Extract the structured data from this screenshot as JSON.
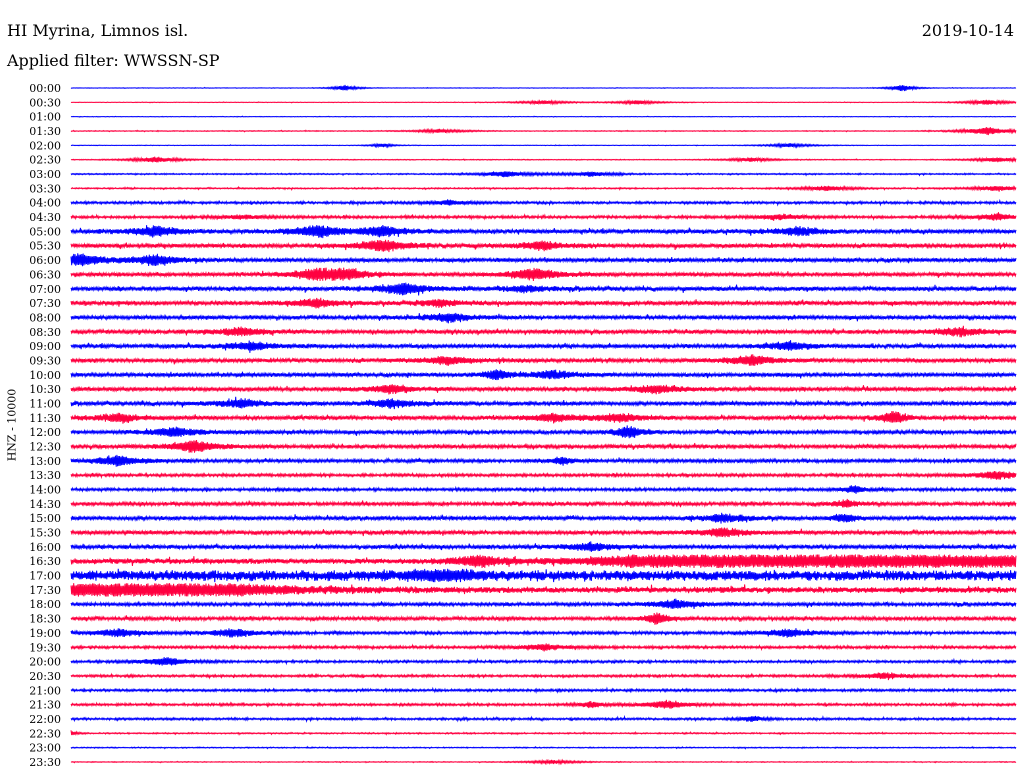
{
  "header": {
    "station": "HI Myrina, Limnos isl.",
    "date": "2019-10-14",
    "filter": "Applied filter: WWSSN-SP"
  },
  "chart_data": {
    "type": "line",
    "ylabel": "HNZ - 10000",
    "rows": [
      "00:00",
      "00:30",
      "01:00",
      "01:30",
      "02:00",
      "02:30",
      "03:00",
      "03:30",
      "04:00",
      "04:30",
      "05:00",
      "05:30",
      "06:00",
      "06:30",
      "07:00",
      "07:30",
      "08:00",
      "08:30",
      "09:00",
      "09:30",
      "10:00",
      "10:30",
      "11:00",
      "11:30",
      "12:00",
      "12:30",
      "13:00",
      "13:30",
      "14:00",
      "14:30",
      "15:00",
      "15:30",
      "16:00",
      "16:30",
      "17:00",
      "17:30",
      "18:00",
      "18:30",
      "19:00",
      "19:30",
      "20:00",
      "20:30",
      "21:00",
      "21:30",
      "22:00",
      "22:30",
      "23:00",
      "23:30"
    ],
    "colors": [
      "#0000ff",
      "#ff0040"
    ],
    "noise_level": [
      0.2,
      0.2,
      0.2,
      0.3,
      0.2,
      0.3,
      0.5,
      0.5,
      0.9,
      1.0,
      1.6,
      1.6,
      1.5,
      1.5,
      1.6,
      1.6,
      1.5,
      1.5,
      1.5,
      1.5,
      1.5,
      1.5,
      1.5,
      1.5,
      1.4,
      1.4,
      1.3,
      1.1,
      1.1,
      1.3,
      1.5,
      1.5,
      1.5,
      2.0,
      4.0,
      2.3,
      1.3,
      1.3,
      1.1,
      1.0,
      0.9,
      0.9,
      0.9,
      0.9,
      0.8,
      0.5,
      0.4,
      0.3
    ],
    "events": [
      [
        [
          0.29,
          3,
          0.01
        ],
        [
          0.88,
          3.5,
          0.01
        ]
      ],
      [
        [
          0.5,
          2,
          0.02
        ],
        [
          0.6,
          2,
          0.02
        ],
        [
          0.97,
          2.5,
          0.02
        ]
      ],
      [],
      [
        [
          0.39,
          2,
          0.02
        ],
        [
          0.97,
          4,
          0.02
        ]
      ],
      [
        [
          0.33,
          2,
          0.01
        ],
        [
          0.76,
          2,
          0.02
        ]
      ],
      [
        [
          0.09,
          3,
          0.02
        ],
        [
          0.72,
          2,
          0.02
        ],
        [
          0.98,
          2.5,
          0.02
        ]
      ],
      [
        [
          0.46,
          3,
          0.02
        ],
        [
          0.55,
          2.5,
          0.02
        ]
      ],
      [
        [
          0.8,
          2.5,
          0.02
        ],
        [
          0.98,
          2.5,
          0.02
        ]
      ],
      [
        [
          0.4,
          2,
          0.02
        ]
      ],
      [
        [
          0.18,
          2,
          0.02
        ],
        [
          0.75,
          2.5,
          0.02
        ],
        [
          0.98,
          3,
          0.02
        ]
      ],
      [
        [
          0.09,
          5,
          0.02
        ],
        [
          0.26,
          6,
          0.02
        ],
        [
          0.33,
          5,
          0.02
        ],
        [
          0.77,
          4,
          0.02
        ]
      ],
      [
        [
          0.33,
          6,
          0.02
        ],
        [
          0.5,
          4,
          0.02
        ]
      ],
      [
        [
          0.01,
          6,
          0.02
        ],
        [
          0.09,
          5,
          0.02
        ]
      ],
      [
        [
          0.26,
          5,
          0.02
        ],
        [
          0.29,
          5,
          0.02
        ],
        [
          0.49,
          6,
          0.02
        ]
      ],
      [
        [
          0.35,
          6,
          0.02
        ],
        [
          0.48,
          3,
          0.02
        ]
      ],
      [
        [
          0.26,
          4,
          0.02
        ],
        [
          0.39,
          3,
          0.02
        ]
      ],
      [
        [
          0.4,
          4,
          0.02
        ]
      ],
      [
        [
          0.18,
          4,
          0.02
        ],
        [
          0.94,
          4,
          0.02
        ]
      ],
      [
        [
          0.19,
          4,
          0.02
        ],
        [
          0.76,
          4,
          0.02
        ]
      ],
      [
        [
          0.4,
          4,
          0.02
        ],
        [
          0.72,
          5,
          0.02
        ]
      ],
      [
        [
          0.45,
          5,
          0.01
        ],
        [
          0.51,
          4,
          0.02
        ]
      ],
      [
        [
          0.34,
          4,
          0.02
        ],
        [
          0.62,
          4,
          0.02
        ]
      ],
      [
        [
          0.18,
          4,
          0.02
        ],
        [
          0.34,
          4,
          0.02
        ]
      ],
      [
        [
          0.05,
          4,
          0.02
        ],
        [
          0.51,
          4,
          0.02
        ],
        [
          0.58,
          4,
          0.02
        ],
        [
          0.87,
          7,
          0.01
        ]
      ],
      [
        [
          0.11,
          5,
          0.02
        ],
        [
          0.59,
          8,
          0.01
        ]
      ],
      [
        [
          0.13,
          6,
          0.02
        ]
      ],
      [
        [
          0.05,
          5,
          0.02
        ],
        [
          0.52,
          4,
          0.01
        ]
      ],
      [
        [
          0.98,
          4,
          0.02
        ]
      ],
      [
        [
          0.83,
          4,
          0.01
        ]
      ],
      [
        [
          0.82,
          4,
          0.01
        ]
      ],
      [
        [
          0.82,
          4,
          0.01
        ],
        [
          0.69,
          4,
          0.02
        ]
      ],
      [
        [
          0.69,
          4,
          0.02
        ]
      ],
      [
        [
          0.55,
          4,
          0.02
        ]
      ],
      [
        [
          0.43,
          6,
          0.02
        ],
        [
          0.62,
          6,
          0.04
        ],
        [
          0.73,
          7,
          0.08
        ],
        [
          0.86,
          7,
          0.1
        ],
        [
          0.97,
          7,
          0.06
        ]
      ],
      [
        [
          0.39,
          8,
          0.02
        ]
      ],
      [
        [
          0.05,
          7,
          0.1
        ],
        [
          0.13,
          5,
          0.06
        ]
      ],
      [
        [
          0.64,
          4,
          0.02
        ]
      ],
      [
        [
          0.62,
          6,
          0.01
        ]
      ],
      [
        [
          0.05,
          4,
          0.02
        ],
        [
          0.17,
          4,
          0.02
        ],
        [
          0.76,
          4,
          0.02
        ]
      ],
      [
        [
          0.5,
          3,
          0.02
        ]
      ],
      [
        [
          0.1,
          4,
          0.02
        ]
      ],
      [
        [
          0.86,
          3,
          0.02
        ]
      ],
      [],
      [
        [
          0.63,
          4,
          0.02
        ],
        [
          0.55,
          3,
          0.01
        ]
      ],
      [
        [
          0.72,
          3,
          0.01
        ]
      ],
      [
        [
          0.0,
          2.5,
          0.005
        ]
      ],
      [],
      [
        [
          0.51,
          2,
          0.02
        ]
      ]
    ]
  }
}
